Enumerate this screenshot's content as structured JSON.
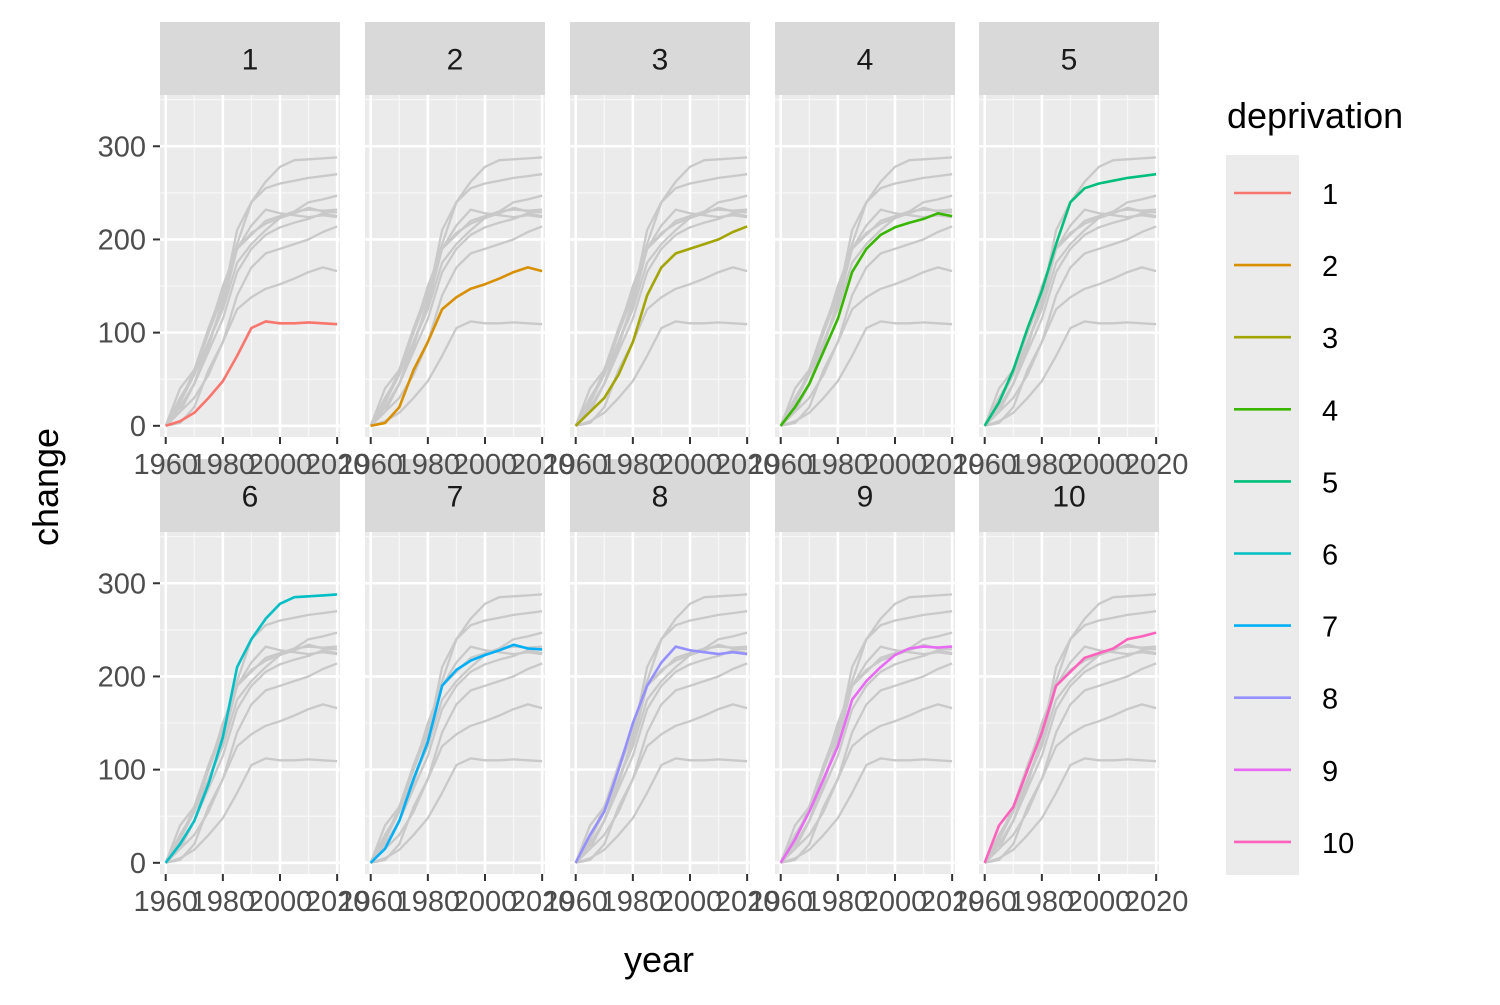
{
  "chart_data": {
    "type": "line",
    "title": "",
    "xlabel": "year",
    "ylabel": "change",
    "xlim": [
      1958,
      2021
    ],
    "ylim": [
      -12,
      355
    ],
    "x_ticks": [
      1960,
      1980,
      2000,
      2020
    ],
    "y_ticks": [
      0,
      100,
      200,
      300
    ],
    "grid": true,
    "facet_by": "deprivation",
    "legend": {
      "title": "deprivation",
      "position": "right"
    },
    "background_series_color": "#c9c9c9",
    "x": [
      1960,
      1965,
      1970,
      1975,
      1980,
      1985,
      1990,
      1995,
      2000,
      2005,
      2010,
      2015,
      2020
    ],
    "series": [
      {
        "name": "1",
        "color": "#F8766D",
        "values": [
          0,
          5,
          14,
          30,
          48,
          75,
          105,
          112,
          110,
          110,
          111,
          110,
          109
        ]
      },
      {
        "name": "2",
        "color": "#D89000",
        "values": [
          0,
          3,
          20,
          60,
          90,
          125,
          138,
          147,
          152,
          158,
          165,
          170,
          166
        ]
      },
      {
        "name": "3",
        "color": "#A3A500",
        "values": [
          0,
          15,
          30,
          55,
          90,
          140,
          170,
          185,
          190,
          195,
          200,
          208,
          214
        ]
      },
      {
        "name": "4",
        "color": "#39B600",
        "values": [
          0,
          20,
          45,
          80,
          115,
          165,
          190,
          205,
          213,
          218,
          222,
          228,
          225
        ]
      },
      {
        "name": "5",
        "color": "#00BF7D",
        "values": [
          0,
          25,
          60,
          105,
          145,
          195,
          240,
          255,
          260,
          263,
          266,
          268,
          270
        ]
      },
      {
        "name": "6",
        "color": "#00BFC4",
        "values": [
          0,
          20,
          45,
          85,
          135,
          210,
          240,
          262,
          278,
          285,
          286,
          287,
          288
        ]
      },
      {
        "name": "7",
        "color": "#00B0F6",
        "values": [
          0,
          15,
          45,
          90,
          130,
          190,
          207,
          217,
          223,
          228,
          234,
          230,
          229
        ]
      },
      {
        "name": "8",
        "color": "#9590FF",
        "values": [
          0,
          30,
          55,
          100,
          150,
          190,
          215,
          232,
          228,
          226,
          224,
          226,
          224
        ]
      },
      {
        "name": "9",
        "color": "#E76BF3",
        "values": [
          0,
          25,
          55,
          90,
          125,
          175,
          195,
          210,
          223,
          230,
          232,
          231,
          232
        ]
      },
      {
        "name": "10",
        "color": "#FF62BC",
        "values": [
          0,
          40,
          60,
          100,
          140,
          190,
          205,
          220,
          225,
          230,
          240,
          243,
          247
        ]
      }
    ]
  }
}
